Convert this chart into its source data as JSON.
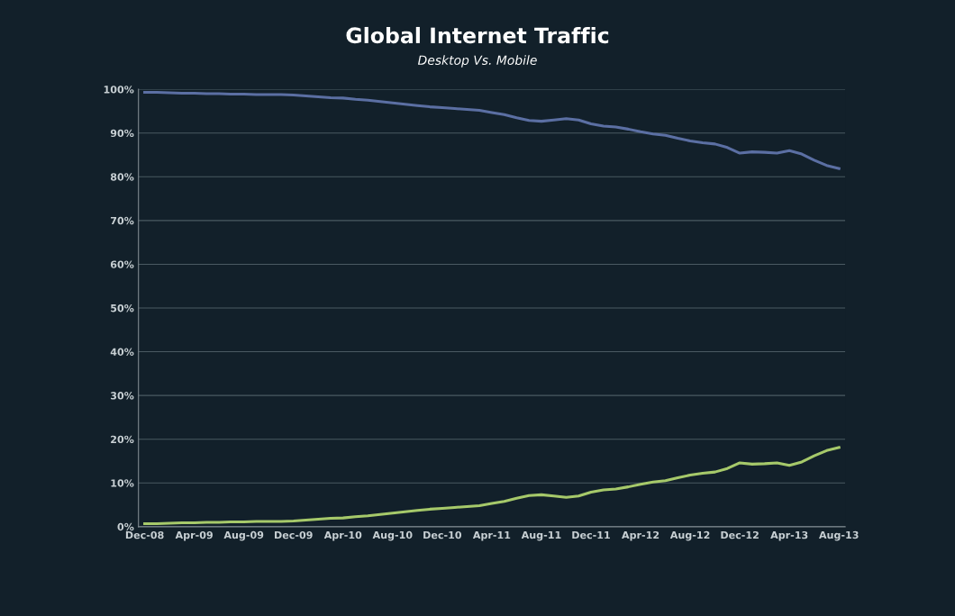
{
  "chart_data": {
    "type": "line",
    "title": "Global Internet Traffic",
    "subtitle": "Desktop Vs. Mobile",
    "categories": [
      "Dec-08",
      null,
      null,
      null,
      "Apr-09",
      null,
      null,
      null,
      "Aug-09",
      null,
      null,
      null,
      "Dec-09",
      null,
      null,
      null,
      "Apr-10",
      null,
      null,
      null,
      "Aug-10",
      null,
      null,
      null,
      "Dec-10",
      null,
      null,
      null,
      "Apr-11",
      null,
      null,
      null,
      "Aug-11",
      null,
      null,
      null,
      "Dec-11",
      null,
      null,
      null,
      "Apr-12",
      null,
      null,
      null,
      "Aug-12",
      null,
      null,
      null,
      "Dec-12",
      null,
      null,
      null,
      "Apr-13",
      null,
      null,
      null,
      "Aug-13"
    ],
    "series": [
      {
        "color": "#5b6fa3",
        "values": [
          99.3,
          99.3,
          99.2,
          99.1,
          99.1,
          99.0,
          99.0,
          98.9,
          98.9,
          98.8,
          98.8,
          98.8,
          98.7,
          98.5,
          98.3,
          98.1,
          98.0,
          97.7,
          97.5,
          97.2,
          96.9,
          96.6,
          96.3,
          96.0,
          95.8,
          95.6,
          95.4,
          95.2,
          94.7,
          94.2,
          93.5,
          92.9,
          92.7,
          93.0,
          93.3,
          93.0,
          92.1,
          91.6,
          91.4,
          90.9,
          90.3,
          89.8,
          89.5,
          88.8,
          88.2,
          87.8,
          87.5,
          86.7,
          85.4,
          85.7,
          85.6,
          85.4,
          86.0,
          85.2,
          83.8,
          82.6,
          81.9
        ]
      },
      {
        "color": "#a6c96a",
        "values": [
          0.7,
          0.7,
          0.8,
          0.9,
          0.9,
          1.0,
          1.0,
          1.1,
          1.1,
          1.2,
          1.2,
          1.2,
          1.3,
          1.5,
          1.7,
          1.9,
          2.0,
          2.3,
          2.5,
          2.8,
          3.1,
          3.4,
          3.7,
          4.0,
          4.2,
          4.4,
          4.6,
          4.8,
          5.3,
          5.8,
          6.5,
          7.1,
          7.3,
          7.0,
          6.7,
          7.0,
          7.9,
          8.4,
          8.6,
          9.1,
          9.7,
          10.2,
          10.5,
          11.2,
          11.8,
          12.2,
          12.5,
          13.3,
          14.6,
          14.3,
          14.4,
          14.6,
          14.0,
          14.8,
          16.2,
          17.4,
          18.1
        ]
      }
    ],
    "ylim": [
      0,
      100
    ],
    "yticks": [
      {
        "value": 0,
        "label": "0%"
      },
      {
        "value": 10,
        "label": "10%"
      },
      {
        "value": 20,
        "label": "20%"
      },
      {
        "value": 30,
        "label": "30%"
      },
      {
        "value": 40,
        "label": "40%"
      },
      {
        "value": 50,
        "label": "50%"
      },
      {
        "value": 60,
        "label": "60%"
      },
      {
        "value": 70,
        "label": "70%"
      },
      {
        "value": 80,
        "label": "80%"
      },
      {
        "value": 90,
        "label": "90%"
      },
      {
        "value": 100,
        "label": "100%"
      }
    ],
    "grid": "y",
    "legend": false,
    "marker": "none",
    "line_style": "solid"
  }
}
